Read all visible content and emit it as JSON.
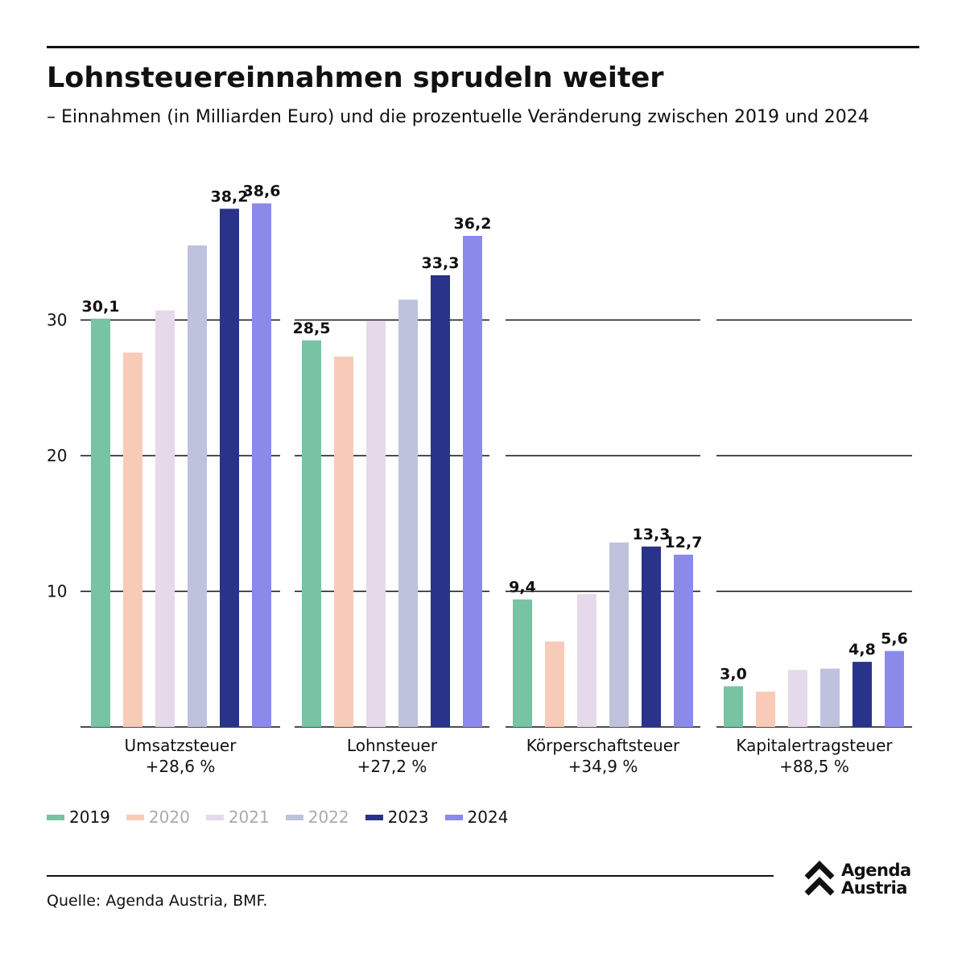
{
  "title": "Lohnsteuereinnahmen sprudeln weiter",
  "subtitle": "– Einnahmen (in Milliarden Euro) und die prozentuelle Veränderung zwischen 2019 und 2024",
  "source": "Quelle: Agenda Austria, BMF.",
  "logo": {
    "line1": "Agenda",
    "line2": "Austria",
    "icon": "double-chevron-up-icon"
  },
  "chart_data": {
    "type": "bar",
    "yticks": [
      10,
      20,
      30
    ],
    "ylim": [
      0,
      39
    ],
    "grid": true,
    "legend_position": "bottom-left",
    "series": [
      {
        "name": "2019",
        "color": "#77c3a3",
        "legend_text_color": "#111111"
      },
      {
        "name": "2020",
        "color": "#f8cbb8",
        "legend_text_color": "#aaaaaa"
      },
      {
        "name": "2021",
        "color": "#e6d9e9",
        "legend_text_color": "#aaaaaa"
      },
      {
        "name": "2022",
        "color": "#bfc2dd",
        "legend_text_color": "#aaaaaa"
      },
      {
        "name": "2023",
        "color": "#283389",
        "legend_text_color": "#111111"
      },
      {
        "name": "2024",
        "color": "#8b8aeb",
        "legend_text_color": "#111111"
      }
    ],
    "groups": [
      {
        "name": "Umsatzsteuer",
        "change": "+28,6 %",
        "values": [
          30.1,
          27.6,
          30.7,
          35.5,
          38.2,
          38.6
        ],
        "labels": [
          "30,1",
          "",
          "",
          "",
          "38,2",
          "38,6"
        ]
      },
      {
        "name": "Lohnsteuer",
        "change": "+27,2 %",
        "values": [
          28.5,
          27.3,
          29.9,
          31.5,
          33.3,
          36.2
        ],
        "labels": [
          "28,5",
          "",
          "",
          "",
          "33,3",
          "36,2"
        ]
      },
      {
        "name": "Körperschaftsteuer",
        "change": "+34,9 %",
        "values": [
          9.4,
          6.3,
          9.8,
          13.6,
          13.3,
          12.7
        ],
        "labels": [
          "9,4",
          "",
          "",
          "",
          "13,3",
          "12,7"
        ]
      },
      {
        "name": "Kapitalertragsteuer",
        "change": "+88,5 %",
        "values": [
          3.0,
          2.6,
          4.2,
          4.3,
          4.8,
          5.6
        ],
        "labels": [
          "3,0",
          "",
          "",
          "",
          "4,8",
          "5,6"
        ]
      }
    ]
  }
}
